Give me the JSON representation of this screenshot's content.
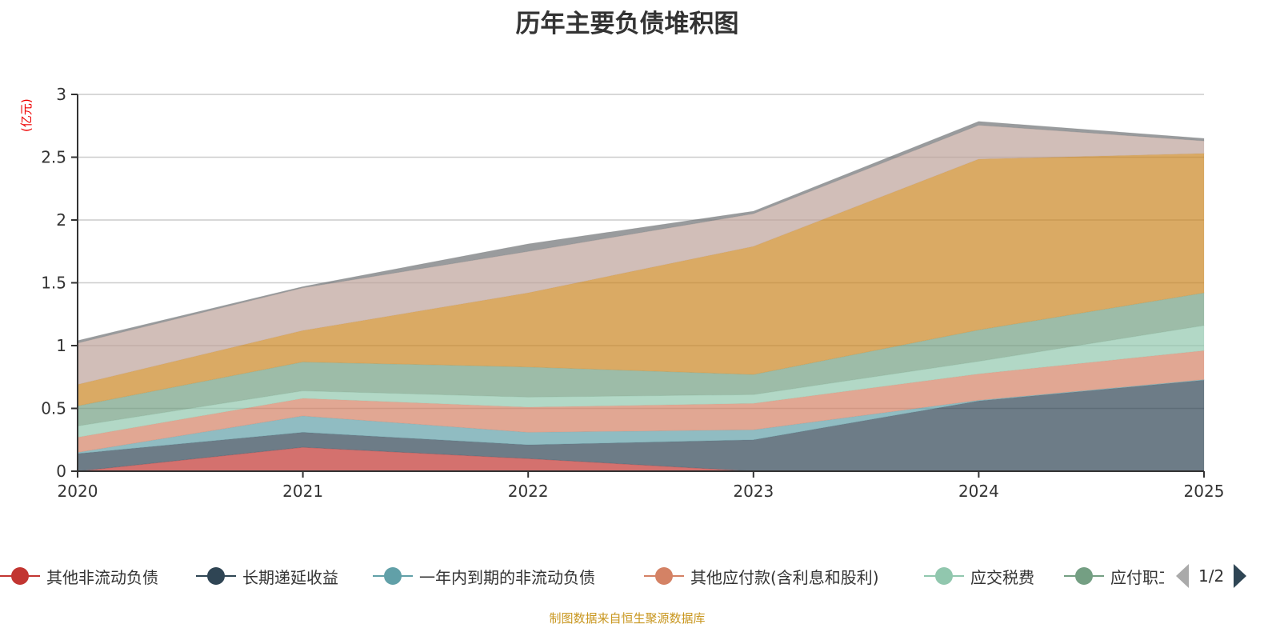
{
  "title": "历年主要负债堆积图",
  "unit_label": "(亿元)",
  "footer": "制图数据来自恒生聚源数据库",
  "legend": {
    "page_text": "1/2",
    "prev_icon": "triangle-left-icon",
    "next_icon": "triangle-right-icon"
  },
  "chart_data": {
    "type": "area",
    "stacked": true,
    "title": "历年主要负债堆积图",
    "ylabel": "(亿元)",
    "categories": [
      "2020",
      "2021",
      "2022",
      "2023",
      "2024",
      "2025"
    ],
    "ylim": [
      0,
      3
    ],
    "yticks": [
      "0",
      "0.5",
      "1",
      "1.5",
      "2",
      "2.5",
      "3"
    ],
    "grid": true,
    "legend_position": "bottom",
    "series": [
      {
        "name": "其他非流动负债",
        "color": "#c23531",
        "values": [
          0,
          0.19,
          0.1,
          0,
          0,
          0
        ]
      },
      {
        "name": "长期递延收益",
        "color": "#2f4554",
        "values": [
          0.14,
          0.12,
          0.11,
          0.25,
          0.56,
          0.725
        ]
      },
      {
        "name": "一年内到期的非流动负债",
        "color": "#61a0a8",
        "values": [
          0.01,
          0.13,
          0.1,
          0.08,
          0.005,
          0.005
        ]
      },
      {
        "name": "其他应付款(含利息和股利)",
        "color": "#d48265",
        "values": [
          0.12,
          0.14,
          0.2,
          0.21,
          0.21,
          0.23
        ]
      },
      {
        "name": "应交税费",
        "color": "#91c7ae",
        "values": [
          0.09,
          0.06,
          0.08,
          0.07,
          0.1,
          0.2
        ]
      },
      {
        "name": "应付职工薪酬",
        "color": "#749f83",
        "values": [
          0.16,
          0.23,
          0.24,
          0.16,
          0.25,
          0.26
        ]
      },
      {
        "color": "#ca8622",
        "values": [
          0.17,
          0.25,
          0.59,
          1.02,
          1.36,
          1.11
        ]
      },
      {
        "color": "#bda29a",
        "values": [
          0.33,
          0.34,
          0.33,
          0.26,
          0.27,
          0.1
        ]
      },
      {
        "color": "#6e7074",
        "values": [
          0.02,
          0.01,
          0.06,
          0.02,
          0.03,
          0.02
        ]
      }
    ]
  }
}
